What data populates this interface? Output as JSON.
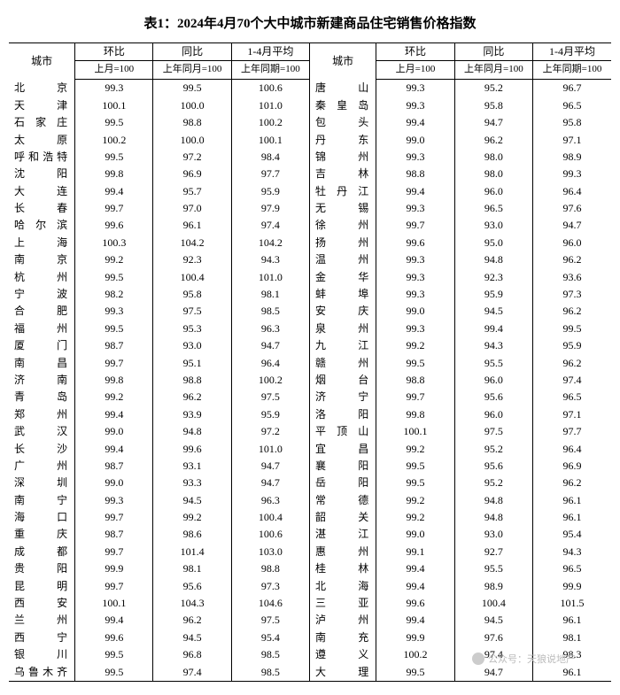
{
  "title": "表1：2024年4月70个大中城市新建商品住宅销售价格指数",
  "headers": {
    "city": "城市",
    "mom": "环比",
    "yoy": "同比",
    "avg": "1-4月平均",
    "mom_sub": "上月=100",
    "yoy_sub": "上年同月=100",
    "avg_sub": "上年同期=100"
  },
  "watermark": "公众号：天狼说地产",
  "style": {
    "font_family": "SimSun",
    "title_fontsize": 15,
    "cell_fontsize": 12,
    "sub_fontsize": 11,
    "border_color": "#000000",
    "background": "#ffffff",
    "text_color": "#000000",
    "watermark_color": "#bbbbbb"
  },
  "left_rows": [
    {
      "city": "北京",
      "mom": "99.3",
      "yoy": "99.5",
      "avg": "100.6"
    },
    {
      "city": "天津",
      "mom": "100.1",
      "yoy": "100.0",
      "avg": "101.0"
    },
    {
      "city": "石家庄",
      "mom": "99.5",
      "yoy": "98.8",
      "avg": "100.2"
    },
    {
      "city": "太原",
      "mom": "100.2",
      "yoy": "100.0",
      "avg": "100.1"
    },
    {
      "city": "呼和浩特",
      "mom": "99.5",
      "yoy": "97.2",
      "avg": "98.4"
    },
    {
      "city": "沈阳",
      "mom": "99.8",
      "yoy": "96.9",
      "avg": "97.7"
    },
    {
      "city": "大连",
      "mom": "99.4",
      "yoy": "95.7",
      "avg": "95.9"
    },
    {
      "city": "长春",
      "mom": "99.7",
      "yoy": "97.0",
      "avg": "97.9"
    },
    {
      "city": "哈尔滨",
      "mom": "99.6",
      "yoy": "96.1",
      "avg": "97.4"
    },
    {
      "city": "上海",
      "mom": "100.3",
      "yoy": "104.2",
      "avg": "104.2"
    },
    {
      "city": "南京",
      "mom": "99.2",
      "yoy": "92.3",
      "avg": "94.3"
    },
    {
      "city": "杭州",
      "mom": "99.5",
      "yoy": "100.4",
      "avg": "101.0"
    },
    {
      "city": "宁波",
      "mom": "98.2",
      "yoy": "95.8",
      "avg": "98.1"
    },
    {
      "city": "合肥",
      "mom": "99.3",
      "yoy": "97.5",
      "avg": "98.5"
    },
    {
      "city": "福州",
      "mom": "99.5",
      "yoy": "95.3",
      "avg": "96.3"
    },
    {
      "city": "厦门",
      "mom": "98.7",
      "yoy": "93.0",
      "avg": "94.7"
    },
    {
      "city": "南昌",
      "mom": "99.7",
      "yoy": "95.1",
      "avg": "96.4"
    },
    {
      "city": "济南",
      "mom": "99.8",
      "yoy": "98.8",
      "avg": "100.2"
    },
    {
      "city": "青岛",
      "mom": "99.2",
      "yoy": "96.2",
      "avg": "97.5"
    },
    {
      "city": "郑州",
      "mom": "99.4",
      "yoy": "93.9",
      "avg": "95.9"
    },
    {
      "city": "武汉",
      "mom": "99.0",
      "yoy": "94.8",
      "avg": "97.2"
    },
    {
      "city": "长沙",
      "mom": "99.4",
      "yoy": "99.6",
      "avg": "101.0"
    },
    {
      "city": "广州",
      "mom": "98.7",
      "yoy": "93.1",
      "avg": "94.7"
    },
    {
      "city": "深圳",
      "mom": "99.0",
      "yoy": "93.3",
      "avg": "94.7"
    },
    {
      "city": "南宁",
      "mom": "99.3",
      "yoy": "94.5",
      "avg": "96.3"
    },
    {
      "city": "海口",
      "mom": "99.7",
      "yoy": "99.2",
      "avg": "100.4"
    },
    {
      "city": "重庆",
      "mom": "98.7",
      "yoy": "98.6",
      "avg": "100.6"
    },
    {
      "city": "成都",
      "mom": "99.7",
      "yoy": "101.4",
      "avg": "103.0"
    },
    {
      "city": "贵阳",
      "mom": "99.9",
      "yoy": "98.1",
      "avg": "98.8"
    },
    {
      "city": "昆明",
      "mom": "99.7",
      "yoy": "95.6",
      "avg": "97.3"
    },
    {
      "city": "西安",
      "mom": "100.1",
      "yoy": "104.3",
      "avg": "104.6"
    },
    {
      "city": "兰州",
      "mom": "99.4",
      "yoy": "96.2",
      "avg": "97.5"
    },
    {
      "city": "西宁",
      "mom": "99.6",
      "yoy": "94.5",
      "avg": "95.4"
    },
    {
      "city": "银川",
      "mom": "99.5",
      "yoy": "96.8",
      "avg": "98.5"
    },
    {
      "city": "乌鲁木齐",
      "mom": "99.5",
      "yoy": "97.4",
      "avg": "98.5"
    }
  ],
  "right_rows": [
    {
      "city": "唐山",
      "mom": "99.3",
      "yoy": "95.2",
      "avg": "96.7"
    },
    {
      "city": "秦皇岛",
      "mom": "99.3",
      "yoy": "95.8",
      "avg": "96.5"
    },
    {
      "city": "包头",
      "mom": "99.4",
      "yoy": "94.7",
      "avg": "95.8"
    },
    {
      "city": "丹东",
      "mom": "99.0",
      "yoy": "96.2",
      "avg": "97.1"
    },
    {
      "city": "锦州",
      "mom": "99.3",
      "yoy": "98.0",
      "avg": "98.9"
    },
    {
      "city": "吉林",
      "mom": "98.8",
      "yoy": "98.0",
      "avg": "99.3"
    },
    {
      "city": "牡丹江",
      "mom": "99.4",
      "yoy": "96.0",
      "avg": "96.4"
    },
    {
      "city": "无锡",
      "mom": "99.3",
      "yoy": "96.5",
      "avg": "97.6"
    },
    {
      "city": "徐州",
      "mom": "99.7",
      "yoy": "93.0",
      "avg": "94.7"
    },
    {
      "city": "扬州",
      "mom": "99.6",
      "yoy": "95.0",
      "avg": "96.0"
    },
    {
      "city": "温州",
      "mom": "99.3",
      "yoy": "94.8",
      "avg": "96.2"
    },
    {
      "city": "金华",
      "mom": "99.3",
      "yoy": "92.3",
      "avg": "93.6"
    },
    {
      "city": "蚌埠",
      "mom": "99.3",
      "yoy": "95.9",
      "avg": "97.3"
    },
    {
      "city": "安庆",
      "mom": "99.0",
      "yoy": "94.5",
      "avg": "96.2"
    },
    {
      "city": "泉州",
      "mom": "99.3",
      "yoy": "99.4",
      "avg": "99.5"
    },
    {
      "city": "九江",
      "mom": "99.2",
      "yoy": "94.3",
      "avg": "95.9"
    },
    {
      "city": "赣州",
      "mom": "99.5",
      "yoy": "95.5",
      "avg": "96.2"
    },
    {
      "city": "烟台",
      "mom": "98.8",
      "yoy": "96.0",
      "avg": "97.4"
    },
    {
      "city": "济宁",
      "mom": "99.7",
      "yoy": "95.6",
      "avg": "96.5"
    },
    {
      "city": "洛阳",
      "mom": "99.8",
      "yoy": "96.0",
      "avg": "97.1"
    },
    {
      "city": "平顶山",
      "mom": "100.1",
      "yoy": "97.5",
      "avg": "97.7"
    },
    {
      "city": "宜昌",
      "mom": "99.2",
      "yoy": "95.2",
      "avg": "96.4"
    },
    {
      "city": "襄阳",
      "mom": "99.5",
      "yoy": "95.6",
      "avg": "96.9"
    },
    {
      "city": "岳阳",
      "mom": "99.5",
      "yoy": "95.2",
      "avg": "96.2"
    },
    {
      "city": "常德",
      "mom": "99.2",
      "yoy": "94.8",
      "avg": "96.1"
    },
    {
      "city": "韶关",
      "mom": "99.2",
      "yoy": "94.8",
      "avg": "96.1"
    },
    {
      "city": "湛江",
      "mom": "99.0",
      "yoy": "93.0",
      "avg": "95.4"
    },
    {
      "city": "惠州",
      "mom": "99.1",
      "yoy": "92.7",
      "avg": "94.3"
    },
    {
      "city": "桂林",
      "mom": "99.4",
      "yoy": "95.5",
      "avg": "96.5"
    },
    {
      "city": "北海",
      "mom": "99.4",
      "yoy": "98.9",
      "avg": "99.9"
    },
    {
      "city": "三亚",
      "mom": "99.6",
      "yoy": "100.4",
      "avg": "101.5"
    },
    {
      "city": "泸州",
      "mom": "99.4",
      "yoy": "94.5",
      "avg": "96.1"
    },
    {
      "city": "南充",
      "mom": "99.9",
      "yoy": "97.6",
      "avg": "98.1"
    },
    {
      "city": "遵义",
      "mom": "100.2",
      "yoy": "97.4",
      "avg": "98.3"
    },
    {
      "city": "大理",
      "mom": "99.5",
      "yoy": "94.7",
      "avg": "96.1"
    }
  ]
}
